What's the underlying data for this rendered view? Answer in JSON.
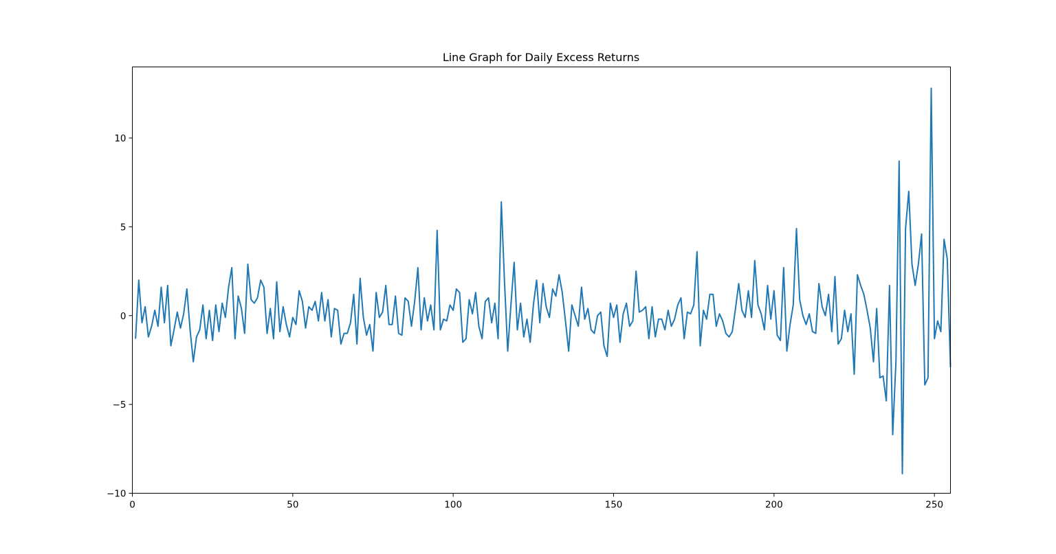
{
  "chart_data": {
    "type": "line",
    "title": "Line Graph for Daily Excess Returns",
    "xlabel": "",
    "ylabel": "",
    "xlim": [
      0,
      255
    ],
    "ylim": [
      -10,
      14
    ],
    "xticks": [
      0,
      50,
      100,
      150,
      200,
      250
    ],
    "yticks": [
      -10,
      -5,
      0,
      5,
      10
    ],
    "xtick_labels": [
      "0",
      "50",
      "100",
      "150",
      "200",
      "250"
    ],
    "ytick_labels": [
      "−10",
      "−5",
      "0",
      "5",
      "10"
    ],
    "grid": false,
    "series": [
      {
        "color": "#1f77b4",
        "x_start": 1,
        "values": [
          -1.3,
          2.0,
          -0.4,
          0.5,
          -1.2,
          -0.6,
          0.3,
          -0.6,
          1.6,
          -0.4,
          1.7,
          -1.7,
          -0.8,
          0.2,
          -0.7,
          0.1,
          1.5,
          -0.8,
          -2.6,
          -1.2,
          -0.8,
          0.6,
          -1.3,
          0.3,
          -1.4,
          0.6,
          -0.9,
          0.7,
          -0.1,
          1.6,
          2.7,
          -1.3,
          1.1,
          0.4,
          -1.0,
          2.9,
          0.9,
          0.7,
          1.0,
          2.0,
          1.6,
          -1.0,
          0.4,
          -1.3,
          1.9,
          -0.9,
          0.5,
          -0.5,
          -1.2,
          -0.1,
          -0.5,
          1.4,
          0.8,
          -0.7,
          0.5,
          0.3,
          0.8,
          -0.3,
          1.3,
          -0.3,
          0.9,
          -1.2,
          0.4,
          0.3,
          -1.6,
          -1.0,
          -1.0,
          -0.4,
          1.2,
          -1.6,
          2.1,
          -0.1,
          -1.1,
          -0.5,
          -2.0,
          1.3,
          -0.1,
          0.2,
          1.7,
          -0.5,
          -0.5,
          1.1,
          -1.0,
          -1.1,
          1.0,
          0.8,
          -0.6,
          0.8,
          2.7,
          -0.8,
          1.0,
          -0.3,
          0.6,
          -0.8,
          4.8,
          -0.8,
          -0.2,
          -0.3,
          0.6,
          0.3,
          1.5,
          1.3,
          -1.5,
          -1.3,
          0.9,
          0.1,
          1.3,
          -0.6,
          -1.3,
          0.8,
          1.0,
          -0.4,
          0.7,
          -1.3,
          6.4,
          1.9,
          -2.0,
          0.6,
          3.0,
          -0.8,
          0.7,
          -1.2,
          -0.2,
          -1.5,
          0.6,
          2.0,
          -0.4,
          1.8,
          0.5,
          -0.1,
          1.5,
          1.1,
          2.3,
          1.3,
          -0.3,
          -2.0,
          0.6,
          0.0,
          -0.6,
          1.6,
          -0.2,
          0.4,
          -0.8,
          -1.0,
          0.0,
          0.2,
          -1.7,
          -2.3,
          0.7,
          -0.1,
          0.6,
          -1.5,
          0.1,
          0.7,
          -0.6,
          -0.3,
          2.5,
          0.2,
          0.3,
          0.5,
          -1.3,
          0.5,
          -1.2,
          -0.2,
          -0.2,
          -0.8,
          0.3,
          -0.6,
          -0.2,
          0.6,
          1.0,
          -1.3,
          0.2,
          0.1,
          0.6,
          3.6,
          -1.7,
          0.3,
          -0.2,
          1.2,
          1.2,
          -0.6,
          0.1,
          -0.3,
          -1.0,
          -1.2,
          -0.9,
          0.4,
          1.8,
          0.3,
          -0.1,
          1.4,
          -0.1,
          3.1,
          0.6,
          0.1,
          -0.8,
          1.7,
          -0.2,
          1.4,
          -1.1,
          -1.4,
          2.7,
          -2.0,
          -0.5,
          0.6,
          4.9,
          0.9,
          0.0,
          -0.5,
          0.1,
          -0.9,
          -1.0,
          1.8,
          0.5,
          0.0,
          1.2,
          -0.9,
          2.2,
          -1.6,
          -1.3,
          0.3,
          -0.9,
          0.1,
          -3.3,
          2.3,
          1.7,
          1.2,
          0.3,
          -0.7,
          -2.6,
          0.4,
          -3.5,
          -3.4,
          -4.8,
          1.7,
          -6.7,
          -2.6,
          8.7,
          -8.9,
          4.9,
          7.0,
          2.9,
          1.7,
          2.9,
          4.6,
          -3.9,
          -3.5,
          12.8,
          -1.3,
          -0.3,
          -0.9,
          4.3,
          3.2,
          -2.9
        ]
      }
    ]
  }
}
